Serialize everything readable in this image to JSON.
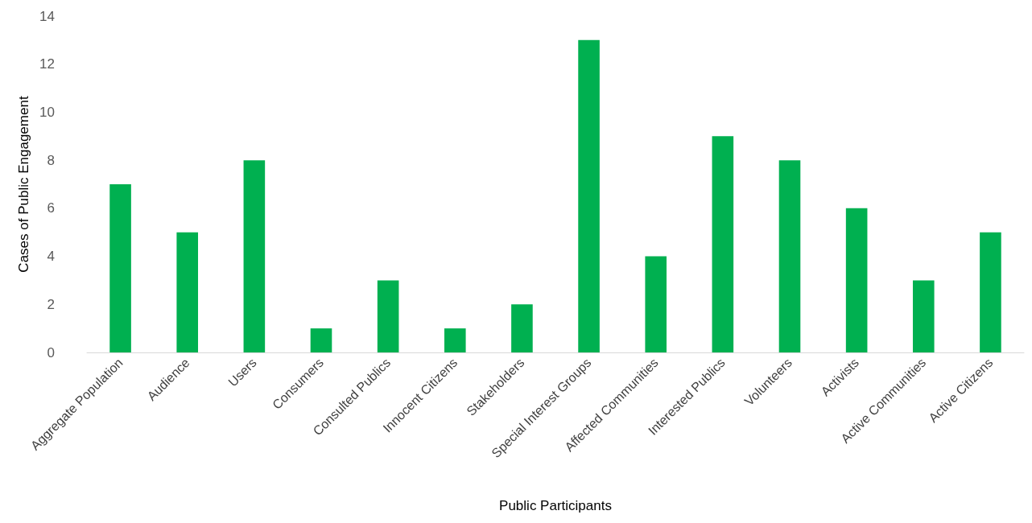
{
  "chart_data": {
    "type": "bar",
    "xlabel": "Public Participants",
    "ylabel": "Cases of Public Engagement",
    "categories": [
      "Aggregate Population",
      "Audience",
      "Users",
      "Consumers",
      "Consulted Publics",
      "Innocent Citizens",
      "Stakeholders",
      "Special Interest Groups",
      "Affected Communities",
      "Interested Publics",
      "Volunteers",
      "Activists",
      "Active Communities",
      "Active Citizens"
    ],
    "values": [
      7,
      5,
      8,
      1,
      3,
      1,
      2,
      13,
      4,
      9,
      8,
      6,
      3,
      5
    ],
    "color": "#00b050",
    "ylim": [
      0,
      14
    ],
    "yticks": [
      0,
      2,
      4,
      6,
      8,
      10,
      12,
      14
    ],
    "grid": false
  }
}
